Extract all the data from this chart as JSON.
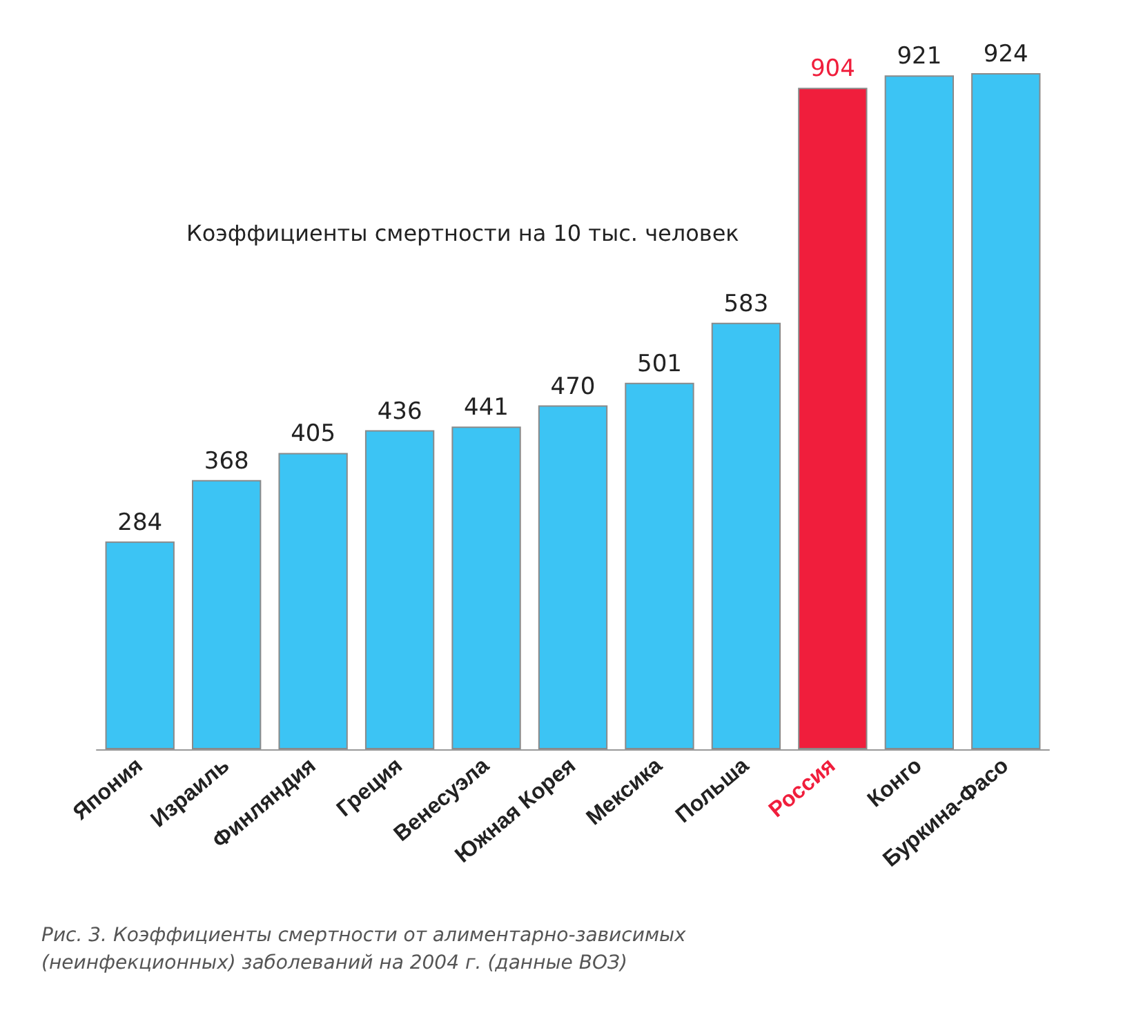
{
  "chart_data": {
    "type": "bar",
    "title": "Коэффициенты смертности на 10 тыс. человек",
    "categories": [
      "Япония",
      "Израиль",
      "Финляндия",
      "Греция",
      "Венесуэла",
      "Южная Корея",
      "Мексика",
      "Польша",
      "Россия",
      "Конго",
      "Буркина-Фасо"
    ],
    "values": [
      284,
      368,
      405,
      436,
      441,
      470,
      501,
      583,
      904,
      921,
      924
    ],
    "colors": [
      "#3cc4f4",
      "#3cc4f4",
      "#3cc4f4",
      "#3cc4f4",
      "#3cc4f4",
      "#3cc4f4",
      "#3cc4f4",
      "#3cc4f4",
      "#f01e3c",
      "#3cc4f4",
      "#3cc4f4"
    ],
    "data_labels": true,
    "annotations": [
      "Рис. 3. Коэффициенты смертности от алиментарно-зависимых (неинфекционных) заболеваний на 2004 г. (данные ВОЗ)"
    ]
  }
}
